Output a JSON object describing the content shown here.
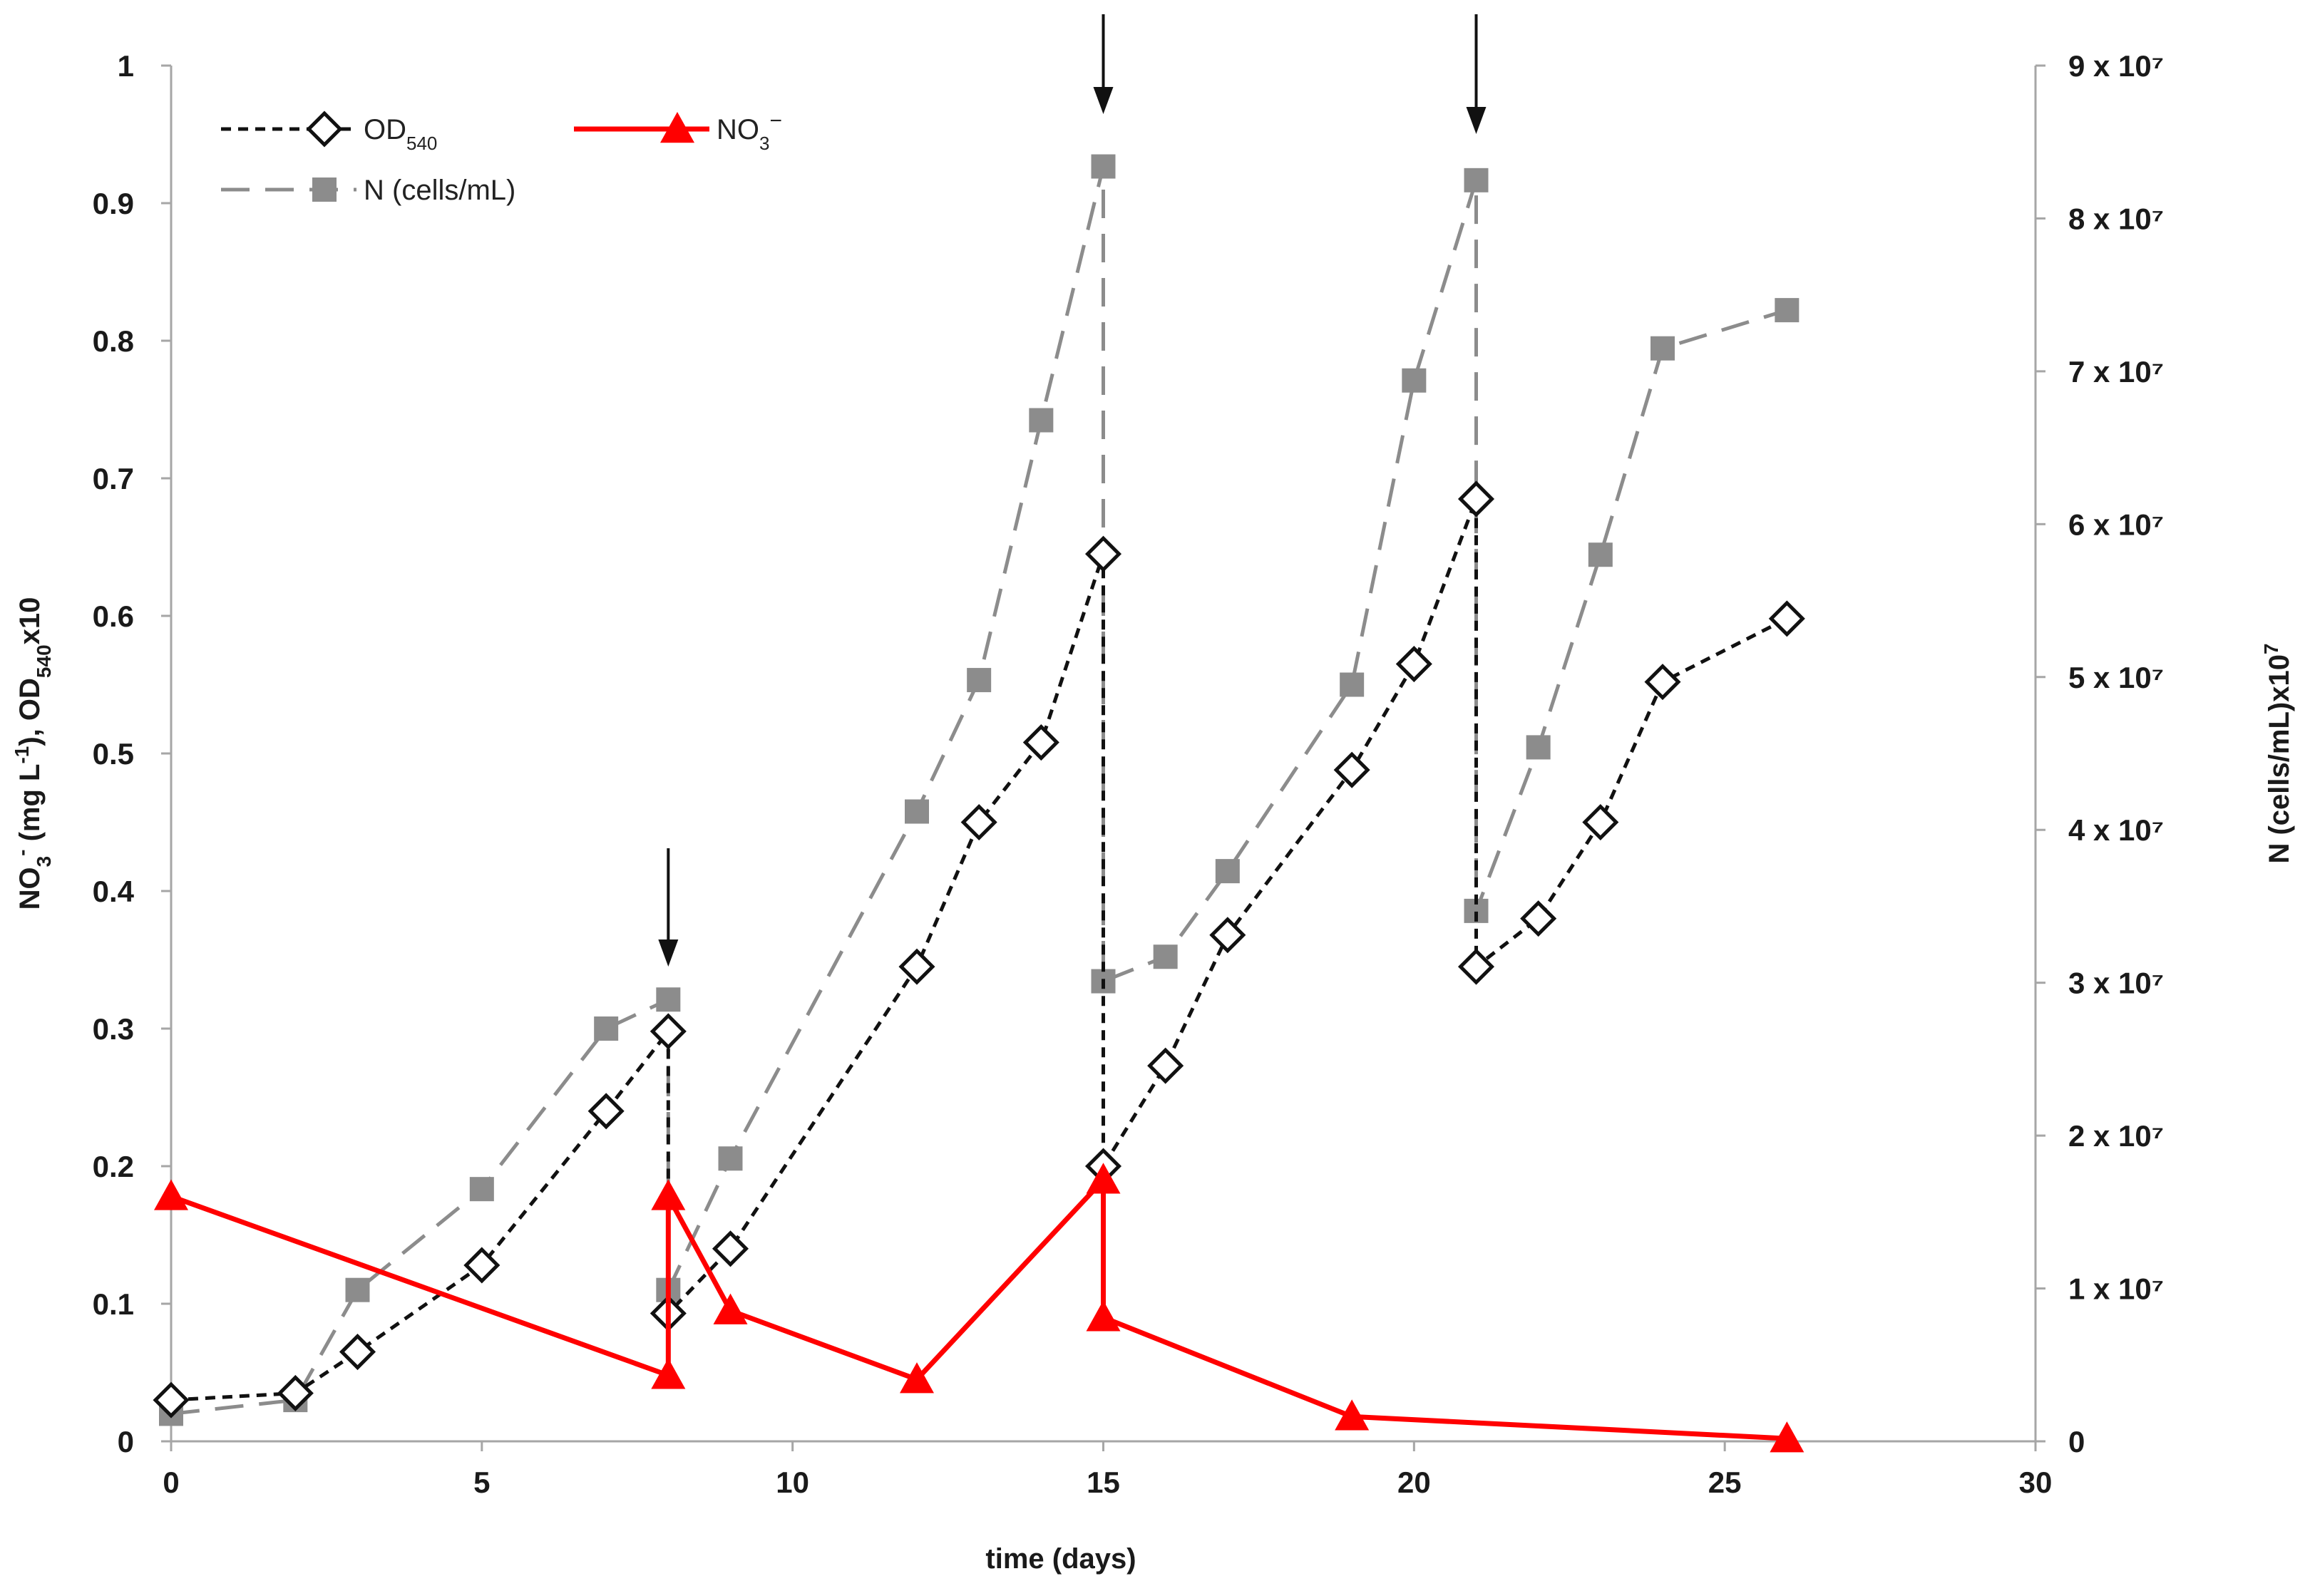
{
  "chart_data": {
    "type": "line",
    "title": "",
    "xlabel": "time (days)",
    "ylabel": "NO3- (mg L-1), OD540x10",
    "ylabel_right": "N (cells/mL)x10^7",
    "xlim": [
      0,
      30
    ],
    "ylim": [
      0,
      1
    ],
    "ylim_right": [
      0,
      9
    ],
    "x_ticks": [
      "0",
      "5",
      "10",
      "15",
      "20",
      "25",
      "30"
    ],
    "y_ticks": [
      "0",
      "0.1",
      "0.2",
      "0.3",
      "0.4",
      "0.5",
      "0.6",
      "0.7",
      "0.8",
      "0.9",
      "1"
    ],
    "y_ticks_right": [
      "0",
      "1 x 10⁷",
      "2 x 10⁷",
      "3 x 10⁷",
      "4 x 10⁷",
      "5 x 10⁷",
      "6 x 10⁷",
      "7 x 10⁷",
      "8 x 10⁷",
      "9 x 10⁷"
    ],
    "annotations": [
      {
        "type": "down-arrow",
        "x": 8
      },
      {
        "type": "down-arrow",
        "x": 15
      },
      {
        "type": "down-arrow",
        "x": 21
      }
    ],
    "series": [
      {
        "name": "OD540",
        "axis": "left",
        "color": "#111111",
        "line": "dotted",
        "marker": "open-diamond",
        "x": [
          0,
          2,
          3,
          5,
          7,
          8,
          8,
          9,
          12,
          13,
          14,
          15,
          15,
          16,
          17,
          19,
          20,
          21,
          21,
          22,
          23,
          24,
          26
        ],
        "values": [
          0.03,
          0.035,
          0.065,
          0.128,
          0.24,
          0.298,
          0.093,
          0.14,
          0.345,
          0.45,
          0.508,
          0.645,
          0.2,
          0.273,
          0.368,
          0.488,
          0.565,
          0.685,
          0.345,
          0.38,
          0.45,
          0.552,
          0.598
        ]
      },
      {
        "name": "N (cells/mL)",
        "axis": "right",
        "color": "#8c8c8c",
        "line": "dashed",
        "marker": "filled-square",
        "x": [
          0,
          2,
          3,
          5,
          7,
          8,
          8,
          9,
          12,
          13,
          14,
          15,
          15,
          16,
          17,
          19,
          20,
          21,
          21,
          22,
          23,
          24,
          26
        ],
        "values": [
          0.18,
          0.27,
          0.99,
          1.65,
          2.7,
          2.89,
          0.99,
          1.85,
          4.12,
          4.98,
          6.68,
          8.34,
          3.01,
          3.17,
          3.73,
          4.95,
          6.94,
          8.25,
          3.47,
          4.54,
          5.8,
          7.15,
          7.4
        ]
      },
      {
        "name": "NO3−",
        "axis": "left",
        "color": "#ff0000",
        "line": "solid",
        "marker": "filled-triangle",
        "x": [
          0,
          8,
          8,
          9,
          12,
          15,
          15,
          19,
          26
        ],
        "values": [
          0.178,
          0.048,
          0.178,
          0.095,
          0.045,
          0.19,
          0.09,
          0.018,
          0.002
        ]
      }
    ],
    "legend": [
      {
        "label": "OD",
        "sub": "540",
        "sup": ""
      },
      {
        "label": "NO",
        "sub": "3",
        "sup": "−"
      },
      {
        "label": "N (cells/mL)",
        "sub": "",
        "sup": ""
      }
    ]
  }
}
